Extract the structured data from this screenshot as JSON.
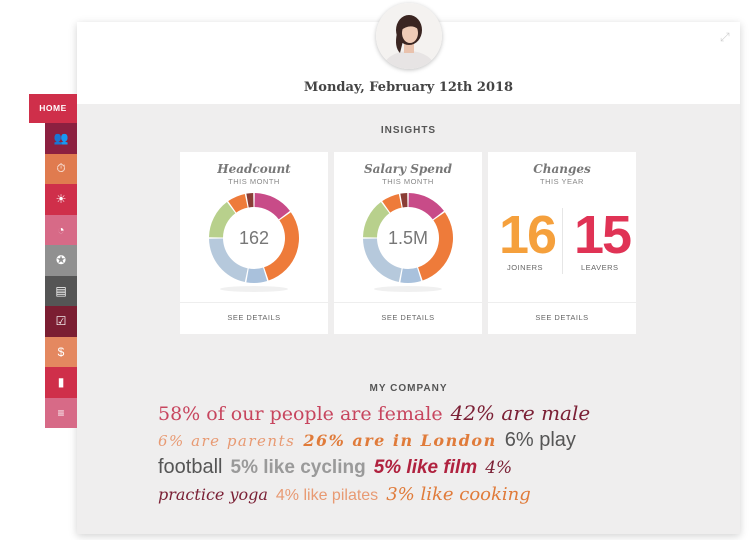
{
  "header": {
    "date": "Monday, February 12th 2018"
  },
  "sidebar": {
    "home_label": "HOME",
    "items": [
      {
        "icon": "people-icon",
        "color": "#8c2040",
        "glyph": "👥"
      },
      {
        "icon": "stopwatch-icon",
        "color": "#e07b4f",
        "glyph": "⏱"
      },
      {
        "icon": "sunset-icon",
        "color": "#cf2f4a",
        "glyph": "☀"
      },
      {
        "icon": "chart-circle-icon",
        "color": "#d76a87",
        "glyph": "◔"
      },
      {
        "icon": "award-icon",
        "color": "#909090",
        "glyph": "✪"
      },
      {
        "icon": "document-icon",
        "color": "#555555",
        "glyph": "▤"
      },
      {
        "icon": "checkbox-icon",
        "color": "#7b1e32",
        "glyph": "☑"
      },
      {
        "icon": "coin-icon",
        "color": "#e48860",
        "glyph": "$"
      },
      {
        "icon": "bar-chart-icon",
        "color": "#cf2f4a",
        "glyph": "▮"
      },
      {
        "icon": "sliders-icon",
        "color": "#d76a87",
        "glyph": "≡"
      }
    ]
  },
  "insights": {
    "label": "INSIGHTS",
    "cards": [
      {
        "title": "Headcount",
        "subtitle": "THIS MONTH",
        "value": "162",
        "details": "SEE DETAILS"
      },
      {
        "title": "Salary Spend",
        "subtitle": "THIS MONTH",
        "value": "1.5M",
        "details": "SEE DETAILS"
      },
      {
        "title": "Changes",
        "subtitle": "THIS YEAR",
        "details": "SEE DETAILS",
        "joiners": {
          "value": "16",
          "label": "JOINERS",
          "color": "#f5a03c"
        },
        "leavers": {
          "value": "15",
          "label": "LEAVERS",
          "color": "#e03355"
        }
      }
    ],
    "donut_segments": [
      {
        "value": 15,
        "color": "#c84b88"
      },
      {
        "value": 30,
        "color": "#ee7b3a"
      },
      {
        "value": 8,
        "color": "#a9c1dc"
      },
      {
        "value": 22,
        "color": "#b6c9dc"
      },
      {
        "value": 15,
        "color": "#b8d08c"
      },
      {
        "value": 7,
        "color": "#ee7b3a"
      },
      {
        "value": 3,
        "color": "#8a3d36"
      }
    ]
  },
  "company": {
    "label": "MY COMPANY",
    "lines": [
      [
        {
          "text": "58% of our people are female",
          "color": "#c7455e",
          "size": 19,
          "family": "serif",
          "italic": false,
          "bold": false
        },
        {
          "text": "42% are male",
          "color": "#7b2035",
          "size": 20,
          "family": "serif",
          "italic": true,
          "bold": false
        }
      ],
      [
        {
          "text": "6% are parents",
          "color": "#e89a73",
          "size": 15,
          "family": "serif",
          "italic": true,
          "bold": false,
          "spacing": "1.5px"
        },
        {
          "text": "26% are in London",
          "color": "#e07b3a",
          "size": 16,
          "family": "serif",
          "italic": true,
          "bold": true,
          "spacing": "1.5px"
        },
        {
          "text": "6% play",
          "color": "#555555",
          "size": 20,
          "family": "sans",
          "italic": false,
          "bold": false
        }
      ],
      [
        {
          "text": "football",
          "color": "#555555",
          "size": 20,
          "family": "sans",
          "italic": false,
          "bold": false
        },
        {
          "text": "5% like cycling",
          "color": "#9a9a9a",
          "size": 19,
          "family": "sans",
          "italic": false,
          "bold": true
        },
        {
          "text": "5% like film",
          "color": "#b0223f",
          "size": 19,
          "family": "sans",
          "italic": true,
          "bold": true
        },
        {
          "text": "4%",
          "color": "#7b2035",
          "size": 17,
          "family": "serif",
          "italic": true,
          "bold": false
        }
      ],
      [
        {
          "text": "practice yoga",
          "color": "#7b2035",
          "size": 16,
          "family": "serif",
          "italic": true,
          "bold": false
        },
        {
          "text": "4% like pilates",
          "color": "#e89a73",
          "size": 16,
          "family": "sans",
          "italic": false,
          "bold": false
        },
        {
          "text": "3% like cooking",
          "color": "#e07b3a",
          "size": 18,
          "family": "serif",
          "italic": true,
          "bold": false
        }
      ]
    ]
  }
}
